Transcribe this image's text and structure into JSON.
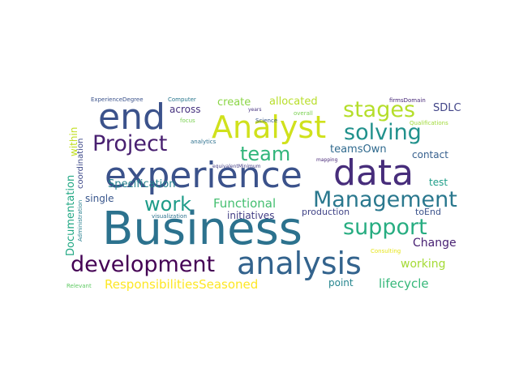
{
  "words": [
    {
      "text": "Business",
      "color": "#2c728e"
    },
    {
      "text": "experience",
      "color": "#3b528b"
    },
    {
      "text": "data",
      "color": "#472d7b"
    },
    {
      "text": "analysis",
      "color": "#33638d"
    },
    {
      "text": "Analyst",
      "color": "#d0e11c"
    },
    {
      "text": "end",
      "color": "#3b528b"
    },
    {
      "text": "development",
      "color": "#440154"
    },
    {
      "text": "Management",
      "color": "#2a788e"
    },
    {
      "text": "stages",
      "color": "#b5de2b"
    },
    {
      "text": "solving",
      "color": "#21918c"
    },
    {
      "text": "support",
      "color": "#27ad81"
    },
    {
      "text": "Project",
      "color": "#481f70"
    },
    {
      "text": "team",
      "color": "#31b57b"
    },
    {
      "text": "work",
      "color": "#1e9c89"
    },
    {
      "text": "Functional",
      "color": "#44bf70"
    },
    {
      "text": "ResponsibilitiesSeasoned",
      "color": "#fde725"
    },
    {
      "text": "working",
      "color": "#a5db36"
    },
    {
      "text": "lifecycle",
      "color": "#35b779"
    },
    {
      "text": "Change",
      "color": "#482173"
    },
    {
      "text": "teamsOwn",
      "color": "#306a8e"
    },
    {
      "text": "Specification",
      "color": "#26828e"
    },
    {
      "text": "create",
      "color": "#8bd646"
    },
    {
      "text": "allocated",
      "color": "#b8de29"
    },
    {
      "text": "SDLC",
      "color": "#414487"
    },
    {
      "text": "across",
      "color": "#46317e"
    },
    {
      "text": "contact",
      "color": "#355f8d"
    },
    {
      "text": "initiatives",
      "color": "#433e85"
    },
    {
      "text": "single",
      "color": "#39568c"
    },
    {
      "text": "test",
      "color": "#1f9e89"
    },
    {
      "text": "point",
      "color": "#25858e"
    },
    {
      "text": "production",
      "color": "#414487"
    },
    {
      "text": "toEnd",
      "color": "#3b528b"
    },
    {
      "text": "within",
      "color": "#c2df23"
    },
    {
      "text": "Documentation",
      "color": "#22a884"
    },
    {
      "text": "coordination",
      "color": "#3e4989"
    },
    {
      "text": "ExperienceDegree",
      "color": "#3b528b"
    },
    {
      "text": "Computer",
      "color": "#2a788e"
    },
    {
      "text": "firmsDomain",
      "color": "#482878"
    },
    {
      "text": "Qualifications",
      "color": "#a0da39"
    },
    {
      "text": "overall",
      "color": "#7ad151"
    },
    {
      "text": "years",
      "color": "#46337f"
    },
    {
      "text": "focus",
      "color": "#7ad151"
    },
    {
      "text": "Science",
      "color": "#38598c"
    },
    {
      "text": "analytics",
      "color": "#2d708e"
    },
    {
      "text": "equivalentMinimum",
      "color": "#433e85"
    },
    {
      "text": "mapping",
      "color": "#482878"
    },
    {
      "text": "visualization",
      "color": "#2c728e"
    },
    {
      "text": "Consulting",
      "color": "#e5e419"
    },
    {
      "text": "Relevant",
      "color": "#5ec962"
    },
    {
      "text": "Administration",
      "color": "#277f8e"
    }
  ]
}
